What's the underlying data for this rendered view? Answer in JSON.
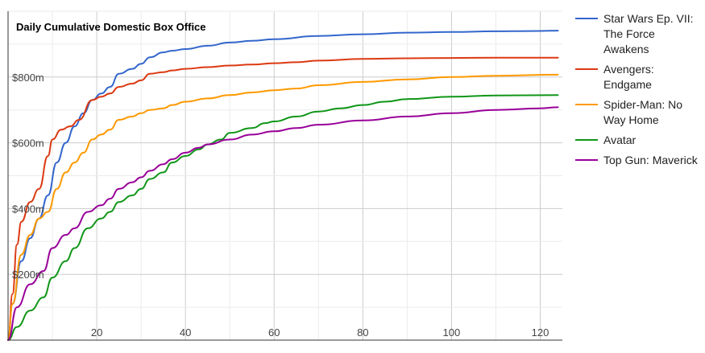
{
  "chart_data": {
    "type": "line",
    "title": "Daily Cumulative Domestic Box Office",
    "xlabel": "",
    "ylabel": "",
    "xlim": [
      0,
      125
    ],
    "ylim": [
      0,
      1000
    ],
    "x_ticks": [
      {
        "value": 20,
        "label": "20"
      },
      {
        "value": 40,
        "label": "40"
      },
      {
        "value": 60,
        "label": "60"
      },
      {
        "value": 80,
        "label": "80"
      },
      {
        "value": 100,
        "label": "100"
      },
      {
        "value": 120,
        "label": "120"
      }
    ],
    "y_ticks": [
      {
        "value": 200,
        "label": "$200m"
      },
      {
        "value": 400,
        "label": "$400m"
      },
      {
        "value": 600,
        "label": "$600m"
      },
      {
        "value": 800,
        "label": "$800m"
      }
    ],
    "grid": true,
    "legend_position": "right",
    "series": [
      {
        "name": "Star Wars Ep. VII: The Force Awakens",
        "color": "#3366cc",
        "points": [
          [
            0,
            0
          ],
          [
            1,
            110
          ],
          [
            3,
            240
          ],
          [
            5,
            310
          ],
          [
            7,
            370
          ],
          [
            9,
            440
          ],
          [
            11,
            540
          ],
          [
            13,
            600
          ],
          [
            15,
            650
          ],
          [
            17,
            690
          ],
          [
            19,
            730
          ],
          [
            21,
            750
          ],
          [
            23,
            770
          ],
          [
            25,
            810
          ],
          [
            28,
            825
          ],
          [
            30,
            840
          ],
          [
            32,
            860
          ],
          [
            35,
            875
          ],
          [
            37,
            880
          ],
          [
            40,
            885
          ],
          [
            45,
            895
          ],
          [
            50,
            905
          ],
          [
            55,
            910
          ],
          [
            60,
            915
          ],
          [
            70,
            925
          ],
          [
            80,
            930
          ],
          [
            90,
            935
          ],
          [
            100,
            937
          ],
          [
            110,
            939
          ],
          [
            120,
            940
          ],
          [
            124,
            941
          ]
        ]
      },
      {
        "name": "Avengers: Endgame",
        "color": "#dc3912",
        "points": [
          [
            0,
            0
          ],
          [
            1,
            140
          ],
          [
            2,
            290
          ],
          [
            3,
            360
          ],
          [
            5,
            420
          ],
          [
            7,
            460
          ],
          [
            9,
            560
          ],
          [
            10,
            610
          ],
          [
            12,
            640
          ],
          [
            14,
            650
          ],
          [
            16,
            670
          ],
          [
            19,
            730
          ],
          [
            21,
            740
          ],
          [
            23,
            750
          ],
          [
            25,
            770
          ],
          [
            28,
            780
          ],
          [
            30,
            790
          ],
          [
            32,
            810
          ],
          [
            35,
            815
          ],
          [
            37,
            820
          ],
          [
            40,
            825
          ],
          [
            45,
            830
          ],
          [
            50,
            835
          ],
          [
            55,
            838
          ],
          [
            60,
            842
          ],
          [
            65,
            845
          ],
          [
            70,
            850
          ],
          [
            80,
            855
          ],
          [
            90,
            857
          ],
          [
            100,
            858
          ],
          [
            110,
            859
          ],
          [
            124,
            859
          ]
        ]
      },
      {
        "name": "Spider-Man: No Way Home",
        "color": "#ff9900",
        "points": [
          [
            0,
            0
          ],
          [
            1,
            110
          ],
          [
            3,
            260
          ],
          [
            5,
            320
          ],
          [
            7,
            370
          ],
          [
            9,
            390
          ],
          [
            11,
            460
          ],
          [
            13,
            510
          ],
          [
            15,
            540
          ],
          [
            17,
            570
          ],
          [
            19,
            610
          ],
          [
            21,
            625
          ],
          [
            23,
            640
          ],
          [
            25,
            670
          ],
          [
            28,
            680
          ],
          [
            30,
            690
          ],
          [
            32,
            700
          ],
          [
            35,
            705
          ],
          [
            37,
            715
          ],
          [
            40,
            725
          ],
          [
            45,
            735
          ],
          [
            50,
            745
          ],
          [
            55,
            753
          ],
          [
            60,
            760
          ],
          [
            65,
            765
          ],
          [
            70,
            775
          ],
          [
            80,
            785
          ],
          [
            90,
            793
          ],
          [
            100,
            800
          ],
          [
            110,
            804
          ],
          [
            124,
            807
          ]
        ]
      },
      {
        "name": "Avatar",
        "color": "#109618",
        "points": [
          [
            0,
            0
          ],
          [
            2,
            40
          ],
          [
            5,
            90
          ],
          [
            8,
            130
          ],
          [
            10,
            190
          ],
          [
            13,
            240
          ],
          [
            15,
            280
          ],
          [
            18,
            340
          ],
          [
            21,
            370
          ],
          [
            23,
            390
          ],
          [
            25,
            420
          ],
          [
            28,
            440
          ],
          [
            30,
            460
          ],
          [
            32,
            490
          ],
          [
            35,
            510
          ],
          [
            37,
            540
          ],
          [
            40,
            560
          ],
          [
            43,
            580
          ],
          [
            45,
            595
          ],
          [
            48,
            610
          ],
          [
            50,
            630
          ],
          [
            55,
            645
          ],
          [
            58,
            660
          ],
          [
            60,
            665
          ],
          [
            65,
            680
          ],
          [
            70,
            695
          ],
          [
            75,
            705
          ],
          [
            80,
            715
          ],
          [
            85,
            725
          ],
          [
            90,
            733
          ],
          [
            100,
            740
          ],
          [
            110,
            744
          ],
          [
            124,
            745
          ]
        ]
      },
      {
        "name": "Top Gun: Maverick",
        "color": "#990099",
        "points": [
          [
            0,
            0
          ],
          [
            2,
            100
          ],
          [
            5,
            170
          ],
          [
            8,
            210
          ],
          [
            10,
            280
          ],
          [
            13,
            320
          ],
          [
            15,
            340
          ],
          [
            18,
            390
          ],
          [
            21,
            410
          ],
          [
            23,
            430
          ],
          [
            25,
            460
          ],
          [
            28,
            480
          ],
          [
            30,
            495
          ],
          [
            32,
            515
          ],
          [
            35,
            535
          ],
          [
            37,
            550
          ],
          [
            40,
            570
          ],
          [
            43,
            585
          ],
          [
            45,
            595
          ],
          [
            50,
            610
          ],
          [
            55,
            625
          ],
          [
            60,
            635
          ],
          [
            65,
            645
          ],
          [
            70,
            655
          ],
          [
            80,
            668
          ],
          [
            90,
            680
          ],
          [
            100,
            690
          ],
          [
            110,
            700
          ],
          [
            120,
            705
          ],
          [
            124,
            708
          ]
        ]
      }
    ]
  }
}
